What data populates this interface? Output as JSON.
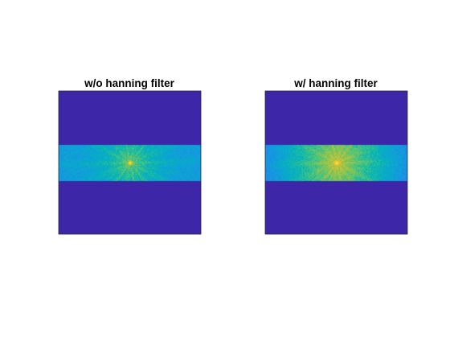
{
  "chart_data": [
    {
      "type": "heatmap",
      "title": "w/o hanning filter",
      "xlabel": "",
      "ylabel": "",
      "grid": false,
      "colormap": "parula",
      "background_value": 0.0,
      "band": {
        "y_start": 0.375,
        "y_end": 0.625
      },
      "band_base_value": 0.36,
      "band_edge_falloff": false,
      "peak_value": 1.0,
      "peak_position": [
        0.5,
        0.5
      ]
    },
    {
      "type": "heatmap",
      "title": "w/ hanning filter",
      "xlabel": "",
      "ylabel": "",
      "grid": false,
      "colormap": "parula",
      "background_value": 0.0,
      "band": {
        "y_start": 0.375,
        "y_end": 0.625
      },
      "band_base_value": 0.5,
      "band_edge_falloff": true,
      "peak_value": 1.0,
      "peak_position": [
        0.5,
        0.5
      ]
    }
  ],
  "colors": {
    "axes_background": "#3E26A8",
    "axes_border": "#262626"
  }
}
